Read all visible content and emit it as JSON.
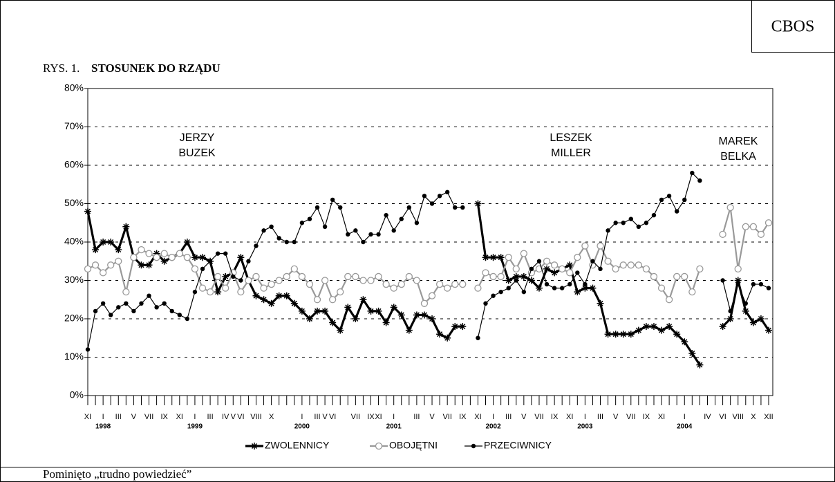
{
  "header": {
    "source": "CBOS",
    "title_prefix": "RYS. 1.",
    "title": "STOSUNEK DO RZĄDU"
  },
  "footer": "Pominięto „trudno powiedzieć”",
  "chart_data": {
    "type": "line",
    "categories": [
      "XI",
      null,
      "I",
      null,
      "III",
      null,
      "V",
      null,
      "VII",
      null,
      "IX",
      null,
      "XI",
      null,
      "I",
      null,
      "III",
      null,
      "IV",
      "V",
      "VI",
      null,
      "VIII",
      null,
      "X",
      null,
      null,
      null,
      "I",
      null,
      "III",
      "V",
      "VI",
      null,
      null,
      "VII",
      null,
      "IX",
      "XI",
      null,
      "I",
      null,
      null,
      "III",
      null,
      "V",
      null,
      "VII",
      null,
      "IX",
      null,
      "XI",
      null,
      "I",
      null,
      "III",
      null,
      "V",
      null,
      "VII",
      null,
      "IX",
      null,
      "XI",
      null,
      "I",
      null,
      "III",
      null,
      "V",
      null,
      "VII",
      null,
      "IX",
      null,
      "XI",
      null,
      null,
      "I",
      null,
      null,
      "IV",
      null,
      "VI",
      null,
      "VIII",
      null,
      "X",
      null,
      "XII"
    ],
    "years": [
      {
        "label": "1998",
        "category": 2
      },
      {
        "label": "1999",
        "category": 14
      },
      {
        "label": "2000",
        "category": 28
      },
      {
        "label": "2001",
        "category": 40
      },
      {
        "label": "2002",
        "category": 53
      },
      {
        "label": "2003",
        "category": 65
      },
      {
        "label": "2004",
        "category": 78
      }
    ],
    "series": [
      {
        "name": "ZWOLENNICY",
        "color": "#000000",
        "values": [
          48,
          38,
          40,
          40,
          38,
          44,
          36,
          34,
          34,
          37,
          35,
          36,
          37,
          40,
          36,
          36,
          35,
          27,
          31,
          32,
          36,
          30,
          26,
          25,
          24,
          26,
          26,
          24,
          22,
          20,
          22,
          22,
          19,
          17,
          23,
          20,
          25,
          22,
          22,
          19,
          23,
          21,
          17,
          21,
          21,
          20,
          16,
          15,
          18,
          18,
          null,
          50,
          36,
          36,
          36,
          30,
          31,
          31,
          30,
          28,
          33,
          32,
          33,
          34,
          27,
          28,
          28,
          24,
          16,
          16,
          16,
          16,
          17,
          18,
          18,
          17,
          18,
          16,
          14,
          11,
          8,
          null,
          null,
          18,
          20,
          30,
          22,
          19,
          20,
          17
        ]
      },
      {
        "name": "OBOJĘTNI",
        "color": "#999999",
        "values": [
          33,
          34,
          32,
          34,
          35,
          27,
          36,
          38,
          37,
          36,
          37,
          36,
          37,
          36,
          33,
          28,
          27,
          31,
          28,
          32,
          27,
          30,
          31,
          28,
          29,
          30,
          31,
          33,
          31,
          29,
          25,
          30,
          25,
          27,
          31,
          31,
          30,
          30,
          31,
          29,
          28,
          29,
          31,
          30,
          24,
          26,
          29,
          28,
          29,
          29,
          null,
          28,
          32,
          31,
          31,
          36,
          33,
          37,
          32,
          33,
          35,
          34,
          33,
          32,
          36,
          39,
          34,
          39,
          35,
          33,
          34,
          34,
          34,
          33,
          31,
          28,
          25,
          31,
          31,
          27,
          33,
          null,
          null,
          42,
          49,
          33,
          44,
          44,
          42,
          45
        ]
      },
      {
        "name": "PRZECIWNICY",
        "color": "#000000",
        "values": [
          12,
          22,
          24,
          21,
          23,
          24,
          22,
          24,
          26,
          23,
          24,
          22,
          21,
          20,
          27,
          33,
          35,
          37,
          37,
          31,
          30,
          35,
          39,
          43,
          44,
          41,
          40,
          40,
          45,
          46,
          49,
          44,
          51,
          49,
          42,
          43,
          40,
          42,
          42,
          47,
          43,
          46,
          49,
          45,
          52,
          50,
          52,
          53,
          49,
          49,
          null,
          15,
          24,
          26,
          27,
          28,
          30,
          27,
          33,
          35,
          29,
          28,
          28,
          29,
          32,
          29,
          35,
          33,
          43,
          45,
          45,
          46,
          44,
          45,
          47,
          51,
          52,
          48,
          51,
          58,
          56,
          null,
          null,
          30,
          22,
          29,
          24,
          29,
          29,
          28
        ]
      }
    ],
    "ylim": [
      0,
      80
    ],
    "yticks": [
      {
        "value": 0,
        "label": "0%"
      },
      {
        "value": 10,
        "label": "10%"
      },
      {
        "value": 20,
        "label": "20%"
      },
      {
        "value": 30,
        "label": "30%"
      },
      {
        "value": 40,
        "label": "40%"
      },
      {
        "value": 50,
        "label": "50%"
      },
      {
        "value": 60,
        "label": "60%"
      },
      {
        "value": 70,
        "label": "70%"
      },
      {
        "value": 80,
        "label": "80%"
      }
    ],
    "grid": true,
    "annotations": [
      [
        "JERZY",
        "BUZEK"
      ],
      [
        "LESZEK",
        "MILLER"
      ],
      [
        "MAREK",
        "BELKA"
      ]
    ]
  }
}
